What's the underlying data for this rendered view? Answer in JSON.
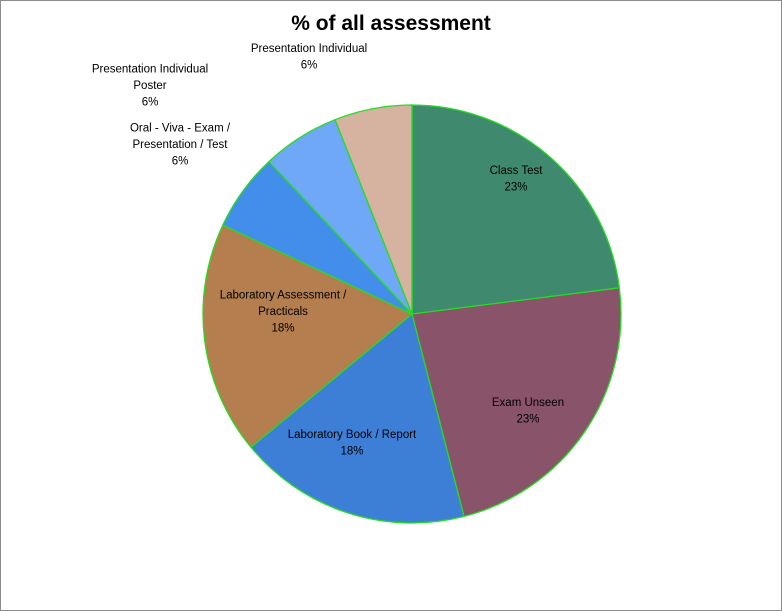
{
  "chart_data": {
    "type": "pie",
    "title": "% of all assessment",
    "slices": [
      {
        "lines": [
          "Class Test"
        ],
        "value": 23,
        "pct_label": "23%",
        "color": "#3f8a6e"
      },
      {
        "lines": [
          "Exam Unseen"
        ],
        "value": 23,
        "pct_label": "23%",
        "color": "#89536a"
      },
      {
        "lines": [
          "Laboratory Book  / Report"
        ],
        "value": 18,
        "pct_label": "18%",
        "color": "#3d7fd6"
      },
      {
        "lines": [
          "Laboratory Assessment /",
          "Practicals"
        ],
        "value": 18,
        "pct_label": "18%",
        "color": "#b47e4e"
      },
      {
        "lines": [
          "Oral - Viva -  Exam /",
          "Presentation / Test"
        ],
        "value": 6,
        "pct_label": "6%",
        "color": "#438eea"
      },
      {
        "lines": [
          "Presentation Individual",
          "Poster"
        ],
        "value": 6,
        "pct_label": "6%",
        "color": "#6fa8f7"
      },
      {
        "lines": [
          "Presentation Individual"
        ],
        "value": 6,
        "pct_label": "6%",
        "color": "#d5b3a0"
      }
    ],
    "slice_border_color": "#22dd22",
    "start_angle": "12 o'clock",
    "direction": "clockwise",
    "legend": "none"
  }
}
